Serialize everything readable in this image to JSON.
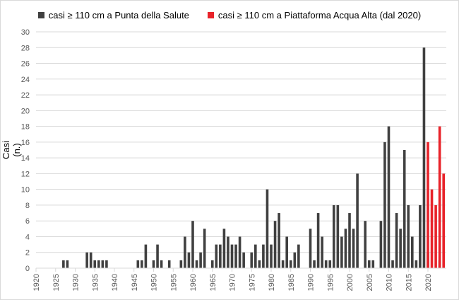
{
  "chart_data": {
    "type": "bar",
    "title": "",
    "xlabel": "",
    "ylabel": "Casi (n.)",
    "ylim": [
      0,
      30
    ],
    "yticks": [
      0,
      2,
      4,
      6,
      8,
      10,
      12,
      14,
      16,
      18,
      20,
      22,
      24,
      26,
      28,
      30
    ],
    "xlim": [
      1920,
      2023
    ],
    "xticks": [
      1920,
      1925,
      1930,
      1935,
      1940,
      1945,
      1950,
      1955,
      1960,
      1965,
      1970,
      1975,
      1980,
      1985,
      1990,
      1995,
      2000,
      2005,
      2010,
      2015,
      2020
    ],
    "grid": "horizontal",
    "legend_position": "top",
    "series": [
      {
        "name": "casi ≥ 110 cm a Punta della Salute",
        "color": "#404040",
        "x": [
          1927,
          1928,
          1933,
          1934,
          1935,
          1936,
          1937,
          1938,
          1946,
          1947,
          1948,
          1950,
          1951,
          1952,
          1954,
          1957,
          1958,
          1959,
          1960,
          1961,
          1962,
          1963,
          1965,
          1966,
          1967,
          1968,
          1969,
          1970,
          1971,
          1972,
          1973,
          1975,
          1976,
          1977,
          1978,
          1979,
          1980,
          1981,
          1982,
          1983,
          1984,
          1985,
          1986,
          1987,
          1990,
          1991,
          1992,
          1993,
          1994,
          1995,
          1996,
          1997,
          1998,
          1999,
          2000,
          2001,
          2002,
          2004,
          2005,
          2006,
          2008,
          2009,
          2010,
          2011,
          2012,
          2013,
          2014,
          2015,
          2016,
          2017,
          2018,
          2019,
          2020,
          2023
        ],
        "values": [
          1,
          1,
          2,
          2,
          1,
          1,
          1,
          1,
          1,
          1,
          3,
          1,
          3,
          1,
          1,
          1,
          4,
          2,
          6,
          1,
          2,
          5,
          1,
          3,
          3,
          5,
          4,
          3,
          3,
          4,
          2,
          2,
          3,
          1,
          3,
          10,
          3,
          6,
          7,
          1,
          4,
          1,
          2,
          3,
          5,
          1,
          7,
          4,
          1,
          1,
          8,
          8,
          4,
          5,
          7,
          5,
          12,
          6,
          1,
          1,
          6,
          16,
          18,
          1,
          7,
          5,
          15,
          8,
          4,
          1,
          8,
          28,
          2,
          1
        ]
      },
      {
        "name": "casi ≥ 110 cm a Piattaforma Acqua Alta (dal 2020)",
        "color": "#e8232a",
        "x": [
          2020,
          2021,
          2022,
          2023,
          2024
        ],
        "values": [
          16,
          10,
          8,
          18,
          12
        ]
      }
    ]
  }
}
